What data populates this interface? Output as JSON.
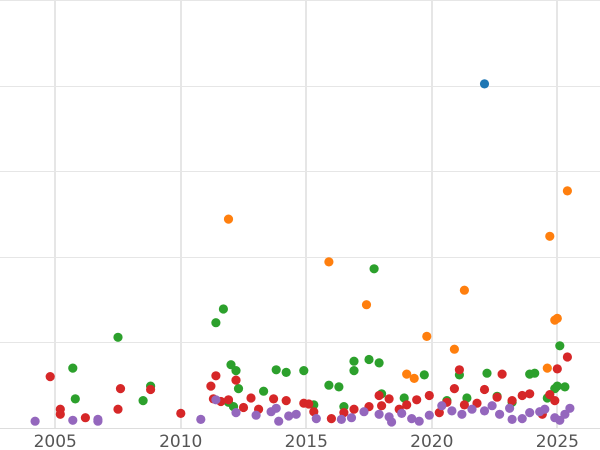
{
  "chart_data": {
    "type": "scatter",
    "title": "",
    "xlabel": "",
    "ylabel": "",
    "xlim": [
      2002.8,
      2026.7
    ],
    "ylim": [
      0,
      500
    ],
    "x_ticks": [
      2005,
      2010,
      2015,
      2020,
      2025
    ],
    "x_tick_labels": [
      "2005",
      "2010",
      "2015",
      "2020",
      "2025"
    ],
    "y_ticks": [
      100,
      200,
      300,
      400,
      500
    ],
    "grid": true,
    "legend": "none",
    "series": [
      {
        "color": "#1f77b4",
        "points": [
          [
            2022.1,
            402
          ]
        ]
      },
      {
        "color": "#ff7f0e",
        "points": [
          [
            2011.9,
            244
          ],
          [
            2015.9,
            194
          ],
          [
            2017.4,
            144
          ],
          [
            2019.0,
            63
          ],
          [
            2019.3,
            58
          ],
          [
            2019.8,
            107
          ],
          [
            2020.9,
            92
          ],
          [
            2021.3,
            161
          ],
          [
            2024.6,
            70
          ],
          [
            2024.7,
            224
          ],
          [
            2024.9,
            126
          ],
          [
            2025.0,
            128
          ],
          [
            2025.4,
            277
          ]
        ]
      },
      {
        "color": "#2ca02c",
        "points": [
          [
            2005.7,
            70
          ],
          [
            2005.8,
            34
          ],
          [
            2007.5,
            106
          ],
          [
            2008.5,
            32
          ],
          [
            2008.8,
            49
          ],
          [
            2011.4,
            123
          ],
          [
            2011.7,
            139
          ],
          [
            2011.9,
            30
          ],
          [
            2012.0,
            74
          ],
          [
            2012.1,
            25
          ],
          [
            2012.2,
            67
          ],
          [
            2012.3,
            46
          ],
          [
            2013.3,
            43
          ],
          [
            2013.8,
            68
          ],
          [
            2014.2,
            65
          ],
          [
            2014.9,
            67
          ],
          [
            2015.3,
            27
          ],
          [
            2015.9,
            50
          ],
          [
            2016.3,
            48
          ],
          [
            2016.5,
            25
          ],
          [
            2016.9,
            67
          ],
          [
            2016.9,
            78
          ],
          [
            2017.5,
            80
          ],
          [
            2017.7,
            186
          ],
          [
            2017.9,
            76
          ],
          [
            2018.0,
            40
          ],
          [
            2018.9,
            35
          ],
          [
            2019.7,
            62
          ],
          [
            2020.6,
            32
          ],
          [
            2021.1,
            62
          ],
          [
            2021.4,
            35
          ],
          [
            2022.2,
            64
          ],
          [
            2022.6,
            37
          ],
          [
            2023.2,
            30
          ],
          [
            2023.9,
            63
          ],
          [
            2024.1,
            64
          ],
          [
            2024.6,
            35
          ],
          [
            2024.9,
            46
          ],
          [
            2025.0,
            49
          ],
          [
            2025.1,
            96
          ],
          [
            2025.3,
            48
          ]
        ]
      },
      {
        "color": "#d62728",
        "points": [
          [
            2004.8,
            60
          ],
          [
            2005.2,
            22
          ],
          [
            2005.2,
            16
          ],
          [
            2006.2,
            12
          ],
          [
            2007.5,
            22
          ],
          [
            2007.6,
            46
          ],
          [
            2008.8,
            45
          ],
          [
            2010.0,
            17
          ],
          [
            2011.2,
            49
          ],
          [
            2011.3,
            34
          ],
          [
            2011.4,
            61
          ],
          [
            2011.6,
            31
          ],
          [
            2011.9,
            33
          ],
          [
            2012.2,
            56
          ],
          [
            2012.5,
            24
          ],
          [
            2012.8,
            35
          ],
          [
            2013.1,
            22
          ],
          [
            2013.7,
            34
          ],
          [
            2014.2,
            32
          ],
          [
            2014.9,
            29
          ],
          [
            2015.1,
            28
          ],
          [
            2015.3,
            19
          ],
          [
            2016.0,
            11
          ],
          [
            2016.5,
            18
          ],
          [
            2016.9,
            22
          ],
          [
            2017.5,
            25
          ],
          [
            2017.9,
            38
          ],
          [
            2018.0,
            26
          ],
          [
            2018.3,
            34
          ],
          [
            2018.7,
            22
          ],
          [
            2019.0,
            27
          ],
          [
            2019.4,
            33
          ],
          [
            2019.9,
            38
          ],
          [
            2020.3,
            18
          ],
          [
            2020.6,
            30
          ],
          [
            2020.9,
            46
          ],
          [
            2021.1,
            68
          ],
          [
            2021.3,
            27
          ],
          [
            2021.8,
            29
          ],
          [
            2022.1,
            45
          ],
          [
            2022.6,
            36
          ],
          [
            2022.8,
            63
          ],
          [
            2023.2,
            32
          ],
          [
            2023.6,
            38
          ],
          [
            2023.9,
            40
          ],
          [
            2024.4,
            16
          ],
          [
            2024.7,
            39
          ],
          [
            2024.9,
            32
          ],
          [
            2025.0,
            69
          ],
          [
            2025.4,
            83
          ]
        ]
      },
      {
        "color": "#9467bd",
        "points": [
          [
            2004.2,
            8
          ],
          [
            2005.7,
            9
          ],
          [
            2006.7,
            10
          ],
          [
            2006.7,
            8
          ],
          [
            2010.8,
            10
          ],
          [
            2011.4,
            33
          ],
          [
            2012.2,
            18
          ],
          [
            2013.0,
            15
          ],
          [
            2013.6,
            19
          ],
          [
            2013.8,
            23
          ],
          [
            2013.9,
            8
          ],
          [
            2014.3,
            14
          ],
          [
            2014.6,
            16
          ],
          [
            2015.4,
            11
          ],
          [
            2016.4,
            10
          ],
          [
            2016.8,
            12
          ],
          [
            2017.3,
            19
          ],
          [
            2017.9,
            16
          ],
          [
            2018.3,
            13
          ],
          [
            2018.4,
            7
          ],
          [
            2018.8,
            17
          ],
          [
            2019.2,
            11
          ],
          [
            2019.5,
            8
          ],
          [
            2019.9,
            15
          ],
          [
            2020.4,
            26
          ],
          [
            2020.8,
            20
          ],
          [
            2021.2,
            16
          ],
          [
            2021.6,
            22
          ],
          [
            2022.1,
            20
          ],
          [
            2022.4,
            26
          ],
          [
            2022.7,
            16
          ],
          [
            2023.1,
            23
          ],
          [
            2023.2,
            10
          ],
          [
            2023.6,
            11
          ],
          [
            2023.9,
            18
          ],
          [
            2024.3,
            19
          ],
          [
            2024.5,
            22
          ],
          [
            2024.9,
            12
          ],
          [
            2025.1,
            9
          ],
          [
            2025.3,
            16
          ],
          [
            2025.5,
            23
          ]
        ]
      }
    ]
  }
}
